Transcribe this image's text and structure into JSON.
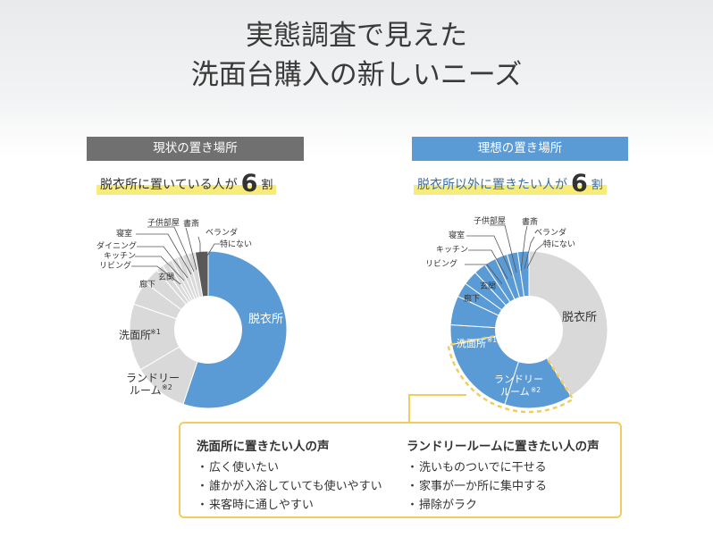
{
  "title": {
    "line1": "実態調査で見えた",
    "line2": "洗面台購入の新しいニーズ"
  },
  "left_panel": {
    "title": "現状の置き場所",
    "stat_prefix": "脱衣所に置いている人が",
    "stat_number": "6",
    "stat_suffix": "割"
  },
  "right_panel": {
    "title": "理想の置き場所",
    "stat_prefix": "脱衣所以外に置きたい人が",
    "stat_number": "6",
    "stat_suffix": "割"
  },
  "chart_data": [
    {
      "type": "pie",
      "title": "現状の置き場所",
      "style": "donut",
      "labels": [
        "脱衣所",
        "ランドリールーム※2",
        "洗面所※1",
        "廊下",
        "玄関",
        "リビング",
        "キッチン",
        "ダイニング",
        "寝室",
        "子供部屋",
        "書斎",
        "ベランダ",
        "特にない"
      ],
      "values": [
        56,
        11.5,
        14,
        5,
        3.5,
        1.5,
        1.2,
        1.0,
        1.2,
        1.2,
        1.2,
        1.5,
        2.7
      ],
      "colors": [
        "#5b9bd5",
        "#d9d9d9",
        "#d9d9d9",
        "#d9d9d9",
        "#d9d9d9",
        "#d9d9d9",
        "#d9d9d9",
        "#d9d9d9",
        "#d9d9d9",
        "#d9d9d9",
        "#d9d9d9",
        "#d9d9d9",
        "#595959"
      ]
    },
    {
      "type": "pie",
      "title": "理想の置き場所",
      "style": "donut",
      "labels": [
        "脱衣所",
        "ランドリールーム※2",
        "洗面所※1",
        "廊下",
        "玄関",
        "リビング",
        "キッチン",
        "寝室",
        "子供部屋",
        "書斎",
        "ベランダ",
        "特にない"
      ],
      "values": [
        41,
        14,
        17,
        4,
        6,
        3,
        3,
        2.5,
        2.5,
        2.5,
        2.2,
        2.3
      ],
      "colors": [
        "#d9d9d9",
        "#5b9bd5",
        "#5b9bd5",
        "#5b9bd5",
        "#5b9bd5",
        "#5b9bd5",
        "#5b9bd5",
        "#5b9bd5",
        "#5b9bd5",
        "#5b9bd5",
        "#5b9bd5",
        "#5b9bd5"
      ],
      "highlighted": [
        "洗面所※1",
        "ランドリールーム※2"
      ]
    }
  ],
  "labels_left": {
    "datsuijo": "脱衣所",
    "laundry1": "ランドリー",
    "laundry2": "ルーム",
    "laundry_note": "※2",
    "senmenjo": "洗面所",
    "senmenjo_note": "※1",
    "roka": "廊下",
    "genkan": "玄関",
    "living": "リビング",
    "kitchen": "キッチン",
    "dining": "ダイニング",
    "shinshitsu": "寝室",
    "kodomo": "子供部屋",
    "shosai": "書斎",
    "veranda": "ベランダ",
    "tokuni": "特にない"
  },
  "labels_right": {
    "datsuijo": "脱衣所",
    "laundry1": "ランドリー",
    "laundry2": "ルーム",
    "laundry_note": "※2",
    "senmenjo": "洗面所",
    "senmenjo_note": "※1",
    "roka": "廊下",
    "genkan": "玄関",
    "living": "リビング",
    "kitchen": "キッチン",
    "shinshitsu": "寝室",
    "kodomo": "子供部屋",
    "shosai": "書斎",
    "veranda": "ベランダ",
    "tokuni": "特にない"
  },
  "callout": {
    "left_heading": "洗面所に置きたい人の声",
    "left_items": [
      "広く使いたい",
      "誰かが入浴していても使いやすい",
      "来客時に通しやすい"
    ],
    "right_heading": "ランドリールームに置きたい人の声",
    "right_items": [
      "洗いものついでに干せる",
      "家事が一か所に集中する",
      "掃除がラク"
    ],
    "bullet": "・"
  },
  "colors": {
    "accent_blue": "#5b9bd5",
    "gray_slice": "#d9d9d9",
    "dark_slice": "#595959",
    "highlight_yellow": "#f0cd5d",
    "left_header": "#707070"
  }
}
